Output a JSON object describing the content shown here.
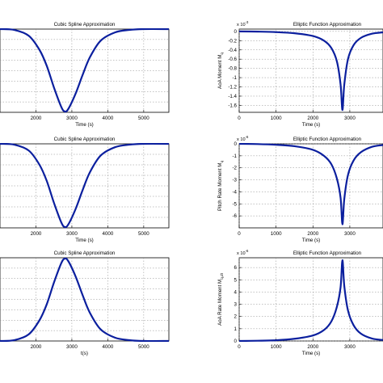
{
  "chart_data": [
    {
      "type": "line",
      "title": "Cubic Spline Approximation",
      "xlabel": "Time (s)",
      "ylabel": "",
      "xticks": [
        "2000",
        "3000",
        "4000",
        "5000"
      ],
      "yticks": [],
      "y_exponent": "",
      "xlim": [
        1000,
        5700
      ],
      "ylim": [
        -1,
        0
      ],
      "grid": true,
      "series": [
        {
          "x": [
            1000,
            1400,
            1800,
            2100,
            2300,
            2500,
            2700,
            2800,
            2900,
            3100,
            3300,
            3500,
            3800,
            4200,
            4600,
            5000,
            5700
          ],
          "y": [
            0,
            -0.01,
            -0.08,
            -0.25,
            -0.44,
            -0.7,
            -0.93,
            -0.99,
            -0.96,
            -0.78,
            -0.55,
            -0.34,
            -0.14,
            -0.04,
            -0.01,
            0,
            0
          ]
        }
      ]
    },
    {
      "type": "line",
      "title": "Elliptic Function Approximation",
      "xlabel": "Time (s)",
      "ylabel": "AoA Moment M",
      "ylabel_sub": "q",
      "xticks": [
        "0",
        "1000",
        "2000",
        "3000"
      ],
      "yticks": [
        "0",
        "-0.2",
        "-0.4",
        "-0.6",
        "-0.8",
        "-1",
        "-1.2",
        "-1.4",
        "-1.6"
      ],
      "y_exponent": "x 10",
      "y_exponent_power": "-3",
      "xlim": [
        0,
        3900
      ],
      "ylim": [
        -1.75,
        0.05
      ],
      "grid": true,
      "series": [
        {
          "x": [
            0,
            500,
            1000,
            1500,
            2000,
            2300,
            2500,
            2650,
            2750,
            2800,
            2850,
            2950,
            3100,
            3300,
            3600,
            3900
          ],
          "y": [
            0,
            -0.005,
            -0.015,
            -0.04,
            -0.1,
            -0.2,
            -0.36,
            -0.65,
            -1.15,
            -1.7,
            -1.15,
            -0.6,
            -0.3,
            -0.14,
            -0.05,
            -0.02
          ]
        }
      ]
    },
    {
      "type": "line",
      "title": "Cubic Spline Approximation",
      "xlabel": "Time (s)",
      "ylabel": "",
      "xticks": [
        "2000",
        "3000",
        "4000",
        "5000"
      ],
      "yticks": [],
      "y_exponent": "",
      "xlim": [
        1000,
        5700
      ],
      "ylim": [
        -1,
        0
      ],
      "grid": true,
      "series": [
        {
          "x": [
            1000,
            1400,
            1800,
            2100,
            2300,
            2500,
            2700,
            2800,
            2900,
            3100,
            3300,
            3500,
            3800,
            4200,
            4600,
            5000,
            5700
          ],
          "y": [
            0,
            -0.01,
            -0.08,
            -0.25,
            -0.44,
            -0.7,
            -0.93,
            -0.99,
            -0.96,
            -0.78,
            -0.55,
            -0.34,
            -0.14,
            -0.04,
            -0.01,
            0,
            0
          ]
        }
      ]
    },
    {
      "type": "line",
      "title": "Elliptic Function Approximation",
      "xlabel": "Time (s)",
      "ylabel": "Pitch Rate Moment M",
      "ylabel_sub": "q",
      "xticks": [
        "0",
        "1000",
        "2000",
        "3000"
      ],
      "yticks": [
        "0",
        "-1",
        "-2",
        "-3",
        "-4",
        "-5",
        "-6"
      ],
      "y_exponent": "x 10",
      "y_exponent_power": "-6",
      "xlim": [
        0,
        3900
      ],
      "ylim": [
        -7,
        0
      ],
      "grid": true,
      "series": [
        {
          "x": [
            0,
            500,
            1000,
            1500,
            2000,
            2300,
            2500,
            2650,
            2750,
            2800,
            2850,
            2950,
            3100,
            3300,
            3600,
            3900
          ],
          "y": [
            0,
            -0.02,
            -0.08,
            -0.2,
            -0.5,
            -1.0,
            -1.7,
            -2.9,
            -4.5,
            -6.7,
            -4.6,
            -2.6,
            -1.4,
            -0.7,
            -0.25,
            -0.1
          ]
        }
      ]
    },
    {
      "type": "line",
      "title": "Cubic Spline Approximation",
      "xlabel": "t(s)",
      "ylabel": "",
      "xticks": [
        "2000",
        "3000",
        "4000",
        "5000"
      ],
      "yticks": [],
      "y_exponent": "",
      "xlim": [
        1000,
        5700
      ],
      "ylim": [
        0,
        1
      ],
      "grid": true,
      "series": [
        {
          "x": [
            1000,
            1400,
            1800,
            2100,
            2300,
            2500,
            2700,
            2800,
            2900,
            3100,
            3300,
            3500,
            3800,
            4200,
            4600,
            5000,
            5700
          ],
          "y": [
            0,
            0.01,
            0.08,
            0.25,
            0.44,
            0.7,
            0.93,
            0.99,
            0.96,
            0.78,
            0.55,
            0.34,
            0.14,
            0.04,
            0.01,
            0,
            0
          ]
        }
      ]
    },
    {
      "type": "line",
      "title": "Elliptic Function Approximation",
      "xlabel": "Time (s)",
      "ylabel": "AoA Rate Moment M",
      "ylabel_sub": "q,dt",
      "xticks": [
        "0",
        "1000",
        "2000",
        "3000"
      ],
      "yticks": [
        "0",
        "1",
        "2",
        "3",
        "4",
        "5",
        "6"
      ],
      "y_exponent": "x 10",
      "y_exponent_power": "-6",
      "xlim": [
        0,
        3900
      ],
      "ylim": [
        0,
        6.8
      ],
      "grid": true,
      "series": [
        {
          "x": [
            0,
            500,
            1000,
            1500,
            2000,
            2300,
            2500,
            2650,
            2750,
            2800,
            2850,
            2950,
            3100,
            3300,
            3600,
            3900
          ],
          "y": [
            0,
            0.02,
            0.06,
            0.18,
            0.45,
            0.9,
            1.6,
            2.8,
            4.4,
            6.6,
            4.5,
            2.5,
            1.3,
            0.6,
            0.2,
            0.08
          ]
        }
      ]
    }
  ]
}
